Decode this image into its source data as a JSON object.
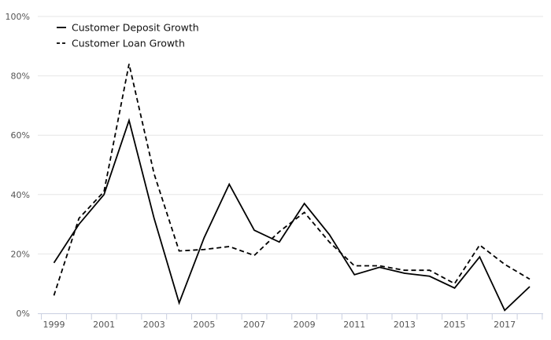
{
  "chart_data": {
    "type": "line",
    "x": [
      1999,
      2000,
      2001,
      2002,
      2003,
      2004,
      2005,
      2006,
      2007,
      2008,
      2009,
      2010,
      2011,
      2012,
      2013,
      2014,
      2015,
      2016,
      2017,
      2018
    ],
    "x_tick_labels": [
      "1999",
      "2001",
      "2003",
      "2005",
      "2007",
      "2009",
      "2011",
      "2013",
      "2015",
      "2017"
    ],
    "y_tick_labels": [
      "0%",
      "20%",
      "40%",
      "60%",
      "80%",
      "100%"
    ],
    "y_ticks": [
      0,
      20,
      40,
      60,
      80,
      100
    ],
    "ylim": [
      0,
      100
    ],
    "xlim": [
      1999,
      2018
    ],
    "grid": "horizontal",
    "legend_position": "top-left",
    "series": [
      {
        "name": "Customer Deposit Growth",
        "style": "solid",
        "color": "#000000",
        "values": [
          17,
          30,
          40,
          65,
          32,
          3.5,
          25.5,
          43.5,
          28,
          24,
          37,
          26.5,
          13,
          15.5,
          13.5,
          12.5,
          8.5,
          19,
          1,
          9
        ]
      },
      {
        "name": "Customer Loan Growth",
        "style": "dashed",
        "color": "#000000",
        "values": [
          6,
          32,
          41,
          84,
          47,
          21,
          21.5,
          22.5,
          19.5,
          27.5,
          34,
          24,
          16,
          16,
          14.5,
          14.5,
          10,
          23,
          16.5,
          11.5
        ]
      }
    ]
  }
}
